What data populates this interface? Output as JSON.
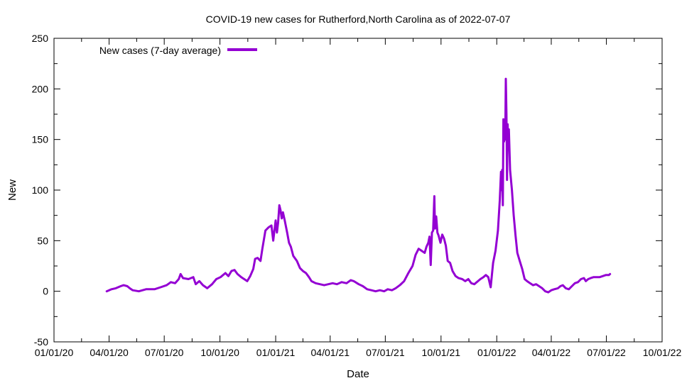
{
  "chart_data": {
    "type": "line",
    "title": "COVID-19 new cases for Rutherford,North Carolina as of 2022-07-07",
    "xlabel": "Date",
    "ylabel": "New",
    "xlim": [
      "2020-01-01",
      "2022-10-01"
    ],
    "ylim": [
      -50,
      250
    ],
    "x_ticks": [
      "01/01/20",
      "04/01/20",
      "07/01/20",
      "10/01/20",
      "01/01/21",
      "04/01/21",
      "07/01/21",
      "10/01/21",
      "01/01/22",
      "04/01/22",
      "07/01/22",
      "10/01/22"
    ],
    "y_ticks": [
      -50,
      0,
      50,
      100,
      150,
      200,
      250
    ],
    "grid": false,
    "legend_position": "top-left",
    "colors": {
      "series": "#9400d3",
      "axis": "#000000"
    },
    "series": [
      {
        "name": "New cases (7-day average)",
        "points": [
          [
            "2020-03-28",
            0
          ],
          [
            "2020-04-05",
            2
          ],
          [
            "2020-04-12",
            3
          ],
          [
            "2020-04-20",
            5
          ],
          [
            "2020-04-25",
            6
          ],
          [
            "2020-05-01",
            5
          ],
          [
            "2020-05-05",
            3
          ],
          [
            "2020-05-10",
            1
          ],
          [
            "2020-05-20",
            0
          ],
          [
            "2020-06-01",
            2
          ],
          [
            "2020-06-15",
            2
          ],
          [
            "2020-06-25",
            4
          ],
          [
            "2020-07-05",
            6
          ],
          [
            "2020-07-12",
            9
          ],
          [
            "2020-07-19",
            8
          ],
          [
            "2020-07-25",
            12
          ],
          [
            "2020-07-28",
            17
          ],
          [
            "2020-08-01",
            13
          ],
          [
            "2020-08-10",
            12
          ],
          [
            "2020-08-18",
            14
          ],
          [
            "2020-08-22",
            7
          ],
          [
            "2020-08-28",
            10
          ],
          [
            "2020-09-03",
            6
          ],
          [
            "2020-09-10",
            3
          ],
          [
            "2020-09-18",
            7
          ],
          [
            "2020-09-25",
            12
          ],
          [
            "2020-10-02",
            14
          ],
          [
            "2020-10-10",
            18
          ],
          [
            "2020-10-15",
            15
          ],
          [
            "2020-10-20",
            20
          ],
          [
            "2020-10-25",
            21
          ],
          [
            "2020-10-30",
            17
          ],
          [
            "2020-11-05",
            14
          ],
          [
            "2020-11-10",
            12
          ],
          [
            "2020-11-15",
            10
          ],
          [
            "2020-11-20",
            15
          ],
          [
            "2020-11-25",
            22
          ],
          [
            "2020-11-28",
            32
          ],
          [
            "2020-12-02",
            33
          ],
          [
            "2020-12-07",
            30
          ],
          [
            "2020-12-10",
            42
          ],
          [
            "2020-12-15",
            60
          ],
          [
            "2020-12-20",
            63
          ],
          [
            "2020-12-25",
            65
          ],
          [
            "2020-12-28",
            50
          ],
          [
            "2021-01-01",
            70
          ],
          [
            "2021-01-03",
            58
          ],
          [
            "2021-01-05",
            68
          ],
          [
            "2021-01-07",
            85
          ],
          [
            "2021-01-09",
            80
          ],
          [
            "2021-01-11",
            72
          ],
          [
            "2021-01-13",
            78
          ],
          [
            "2021-01-16",
            70
          ],
          [
            "2021-01-20",
            58
          ],
          [
            "2021-01-23",
            48
          ],
          [
            "2021-01-26",
            44
          ],
          [
            "2021-01-30",
            35
          ],
          [
            "2021-02-05",
            30
          ],
          [
            "2021-02-10",
            23
          ],
          [
            "2021-02-15",
            20
          ],
          [
            "2021-02-20",
            18
          ],
          [
            "2021-02-25",
            14
          ],
          [
            "2021-03-01",
            10
          ],
          [
            "2021-03-08",
            8
          ],
          [
            "2021-03-15",
            7
          ],
          [
            "2021-03-22",
            6
          ],
          [
            "2021-03-29",
            7
          ],
          [
            "2021-04-05",
            8
          ],
          [
            "2021-04-12",
            7
          ],
          [
            "2021-04-20",
            9
          ],
          [
            "2021-04-28",
            8
          ],
          [
            "2021-05-05",
            11
          ],
          [
            "2021-05-10",
            10
          ],
          [
            "2021-05-18",
            7
          ],
          [
            "2021-05-25",
            5
          ],
          [
            "2021-06-01",
            2
          ],
          [
            "2021-06-08",
            1
          ],
          [
            "2021-06-15",
            0
          ],
          [
            "2021-06-22",
            1
          ],
          [
            "2021-06-29",
            0
          ],
          [
            "2021-07-05",
            2
          ],
          [
            "2021-07-12",
            1
          ],
          [
            "2021-07-18",
            3
          ],
          [
            "2021-07-25",
            6
          ],
          [
            "2021-08-01",
            10
          ],
          [
            "2021-08-08",
            18
          ],
          [
            "2021-08-15",
            25
          ],
          [
            "2021-08-20",
            36
          ],
          [
            "2021-08-25",
            42
          ],
          [
            "2021-08-30",
            40
          ],
          [
            "2021-09-04",
            38
          ],
          [
            "2021-09-07",
            44
          ],
          [
            "2021-09-10",
            48
          ],
          [
            "2021-09-12",
            54
          ],
          [
            "2021-09-14",
            26
          ],
          [
            "2021-09-16",
            58
          ],
          [
            "2021-09-18",
            60
          ],
          [
            "2021-09-20",
            94
          ],
          [
            "2021-09-21",
            62
          ],
          [
            "2021-09-23",
            74
          ],
          [
            "2021-09-25",
            58
          ],
          [
            "2021-09-27",
            55
          ],
          [
            "2021-09-30",
            48
          ],
          [
            "2021-10-03",
            56
          ],
          [
            "2021-10-06",
            52
          ],
          [
            "2021-10-09",
            45
          ],
          [
            "2021-10-12",
            30
          ],
          [
            "2021-10-16",
            28
          ],
          [
            "2021-10-20",
            20
          ],
          [
            "2021-10-25",
            15
          ],
          [
            "2021-10-30",
            13
          ],
          [
            "2021-11-05",
            12
          ],
          [
            "2021-11-10",
            10
          ],
          [
            "2021-11-15",
            12
          ],
          [
            "2021-11-20",
            8
          ],
          [
            "2021-11-25",
            7
          ],
          [
            "2021-12-01",
            10
          ],
          [
            "2021-12-05",
            12
          ],
          [
            "2021-12-10",
            14
          ],
          [
            "2021-12-14",
            16
          ],
          [
            "2021-12-18",
            14
          ],
          [
            "2021-12-22",
            4
          ],
          [
            "2021-12-26",
            28
          ],
          [
            "2021-12-30",
            40
          ],
          [
            "2022-01-03",
            60
          ],
          [
            "2022-01-06",
            90
          ],
          [
            "2022-01-08",
            118
          ],
          [
            "2022-01-09",
            100
          ],
          [
            "2022-01-10",
            120
          ],
          [
            "2022-01-11",
            85
          ],
          [
            "2022-01-12",
            170
          ],
          [
            "2022-01-13",
            148
          ],
          [
            "2022-01-14",
            168
          ],
          [
            "2022-01-15",
            150
          ],
          [
            "2022-01-16",
            210
          ],
          [
            "2022-01-17",
            175
          ],
          [
            "2022-01-18",
            110
          ],
          [
            "2022-01-19",
            165
          ],
          [
            "2022-01-20",
            140
          ],
          [
            "2022-01-21",
            160
          ],
          [
            "2022-01-23",
            120
          ],
          [
            "2022-01-26",
            100
          ],
          [
            "2022-01-29",
            75
          ],
          [
            "2022-02-01",
            55
          ],
          [
            "2022-02-04",
            38
          ],
          [
            "2022-02-08",
            30
          ],
          [
            "2022-02-12",
            22
          ],
          [
            "2022-02-16",
            12
          ],
          [
            "2022-02-20",
            10
          ],
          [
            "2022-02-25",
            8
          ],
          [
            "2022-03-02",
            6
          ],
          [
            "2022-03-07",
            7
          ],
          [
            "2022-03-12",
            5
          ],
          [
            "2022-03-17",
            3
          ],
          [
            "2022-03-22",
            0
          ],
          [
            "2022-03-27",
            -1
          ],
          [
            "2022-04-01",
            1
          ],
          [
            "2022-04-06",
            2
          ],
          [
            "2022-04-12",
            3
          ],
          [
            "2022-04-16",
            5
          ],
          [
            "2022-04-20",
            6
          ],
          [
            "2022-04-25",
            3
          ],
          [
            "2022-04-30",
            2
          ],
          [
            "2022-05-05",
            5
          ],
          [
            "2022-05-10",
            8
          ],
          [
            "2022-05-15",
            9
          ],
          [
            "2022-05-20",
            12
          ],
          [
            "2022-05-25",
            13
          ],
          [
            "2022-05-28",
            10
          ],
          [
            "2022-06-01",
            12
          ],
          [
            "2022-06-05",
            13
          ],
          [
            "2022-06-10",
            14
          ],
          [
            "2022-06-15",
            14
          ],
          [
            "2022-06-20",
            14
          ],
          [
            "2022-06-25",
            15
          ],
          [
            "2022-06-30",
            16
          ],
          [
            "2022-07-05",
            16
          ],
          [
            "2022-07-07",
            17
          ]
        ]
      }
    ]
  }
}
